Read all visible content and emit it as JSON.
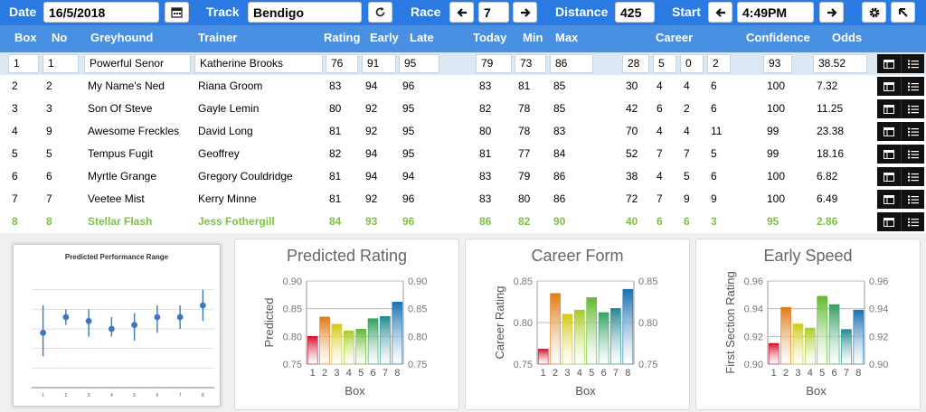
{
  "toolbar": {
    "date_label": "Date",
    "date_value": "16/5/2018",
    "track_label": "Track",
    "track_value": "Bendigo",
    "race_label": "Race",
    "race_value": "7",
    "distance_label": "Distance",
    "distance_value": "425",
    "start_label": "Start",
    "start_value": "4:49PM",
    "icons": [
      "calendar-icon",
      "refresh-icon",
      "arrow-left-icon",
      "arrow-right-icon",
      "gear-icon",
      "pointer-icon"
    ]
  },
  "columns": {
    "box": "Box",
    "no": "No",
    "greyhound": "Greyhound",
    "trainer": "Trainer",
    "rating": "Rating",
    "early": "Early",
    "late": "Late",
    "today": "Today",
    "min": "Min",
    "max": "Max",
    "career": "Career",
    "confidence": "Confidence",
    "odds": "Odds"
  },
  "rows": [
    {
      "box": "1",
      "no": "1",
      "name": "Powerful Senor",
      "trainer": "Katherine Brooks",
      "rating": "76",
      "early": "91",
      "late": "95",
      "today": "79",
      "min": "73",
      "max": "86",
      "c1": "28",
      "c2": "5",
      "c3": "0",
      "c4": "2",
      "confidence": "93",
      "odds": "38.52"
    },
    {
      "box": "2",
      "no": "2",
      "name": "My Name's Ned",
      "trainer": "Riana Groom",
      "rating": "83",
      "early": "94",
      "late": "96",
      "today": "83",
      "min": "81",
      "max": "85",
      "c1": "30",
      "c2": "4",
      "c3": "4",
      "c4": "6",
      "confidence": "100",
      "odds": "7.32"
    },
    {
      "box": "3",
      "no": "3",
      "name": "Son Of Steve",
      "trainer": "Gayle Lemin",
      "rating": "80",
      "early": "92",
      "late": "95",
      "today": "82",
      "min": "78",
      "max": "85",
      "c1": "42",
      "c2": "6",
      "c3": "2",
      "c4": "6",
      "confidence": "100",
      "odds": "11.25"
    },
    {
      "box": "4",
      "no": "9",
      "name": "Awesome Freckles",
      "trainer": "David Long",
      "rating": "81",
      "early": "92",
      "late": "95",
      "today": "80",
      "min": "78",
      "max": "83",
      "c1": "70",
      "c2": "4",
      "c3": "4",
      "c4": "11",
      "confidence": "99",
      "odds": "23.38"
    },
    {
      "box": "5",
      "no": "5",
      "name": "Tempus Fugit",
      "trainer": "Geoffrey",
      "rating": "82",
      "early": "94",
      "late": "95",
      "today": "81",
      "min": "77",
      "max": "84",
      "c1": "52",
      "c2": "7",
      "c3": "7",
      "c4": "5",
      "confidence": "99",
      "odds": "18.16"
    },
    {
      "box": "6",
      "no": "6",
      "name": "Myrtle Grange",
      "trainer": "Gregory Couldridge",
      "rating": "81",
      "early": "94",
      "late": "94",
      "today": "83",
      "min": "79",
      "max": "86",
      "c1": "38",
      "c2": "4",
      "c3": "5",
      "c4": "6",
      "confidence": "100",
      "odds": "6.82"
    },
    {
      "box": "7",
      "no": "7",
      "name": "Veetee Mist",
      "trainer": "Kerry Minne",
      "rating": "81",
      "early": "92",
      "late": "96",
      "today": "83",
      "min": "80",
      "max": "86",
      "c1": "72",
      "c2": "7",
      "c3": "9",
      "c4": "9",
      "confidence": "100",
      "odds": "6.49"
    },
    {
      "box": "8",
      "no": "8",
      "name": "Stellar Flash",
      "trainer": "Jess Fothergill",
      "rating": "84",
      "early": "93",
      "late": "96",
      "today": "86",
      "min": "82",
      "max": "90",
      "c1": "40",
      "c2": "6",
      "c3": "6",
      "c4": "3",
      "confidence": "95",
      "odds": "2.86"
    }
  ],
  "colors": {
    "toolbar": "#2a7ae2",
    "header": "#4a90e2",
    "highlight_text": "#7cc242",
    "bar_gradient": [
      "#d0102a",
      "#e07a10",
      "#d4c810",
      "#a8cc20",
      "#60b830",
      "#30a060",
      "#208890",
      "#1870b0"
    ]
  },
  "chart_data": [
    {
      "type": "scatter",
      "title": "Predicted Performance Range",
      "categories": [
        "1",
        "2",
        "3",
        "4",
        "5",
        "6",
        "7",
        "8"
      ],
      "series": [
        {
          "values": [
            79,
            83,
            82,
            80,
            81,
            83,
            83,
            86
          ]
        },
        {
          "values": [
            73,
            81,
            78,
            78,
            77,
            79,
            80,
            82
          ]
        },
        {
          "values": [
            86,
            85,
            85,
            83,
            84,
            86,
            86,
            90
          ]
        }
      ]
    },
    {
      "type": "bar",
      "title": "Predicted Rating",
      "categories": [
        "1",
        "2",
        "3",
        "4",
        "5",
        "6",
        "7",
        "8"
      ],
      "values": [
        0.8,
        0.835,
        0.822,
        0.81,
        0.813,
        0.832,
        0.836,
        0.862
      ],
      "xlabel": "Box",
      "ylabel": "Predicted",
      "ylim": [
        0.75,
        0.9
      ],
      "ticks": [
        "0.75",
        "0.80",
        "0.85",
        "0.90"
      ]
    },
    {
      "type": "bar",
      "title": "Career Form",
      "categories": [
        "1",
        "2",
        "3",
        "4",
        "5",
        "6",
        "7",
        "8"
      ],
      "values": [
        0.768,
        0.835,
        0.81,
        0.815,
        0.83,
        0.812,
        0.817,
        0.84
      ],
      "xlabel": "Box",
      "ylabel": "Career Rating",
      "ylim": [
        0.75,
        0.85
      ],
      "ticks": [
        "0.75",
        "0.80",
        "0.85"
      ]
    },
    {
      "type": "bar",
      "title": "Early Speed",
      "categories": [
        "1",
        "2",
        "3",
        "4",
        "5",
        "6",
        "7",
        "8"
      ],
      "values": [
        0.915,
        0.941,
        0.929,
        0.926,
        0.949,
        0.943,
        0.925,
        0.939
      ],
      "xlabel": "Box",
      "ylabel": "First Section Rating",
      "ylim": [
        0.9,
        0.96
      ],
      "ticks": [
        "0.90",
        "0.92",
        "0.94",
        "0.96"
      ]
    }
  ]
}
